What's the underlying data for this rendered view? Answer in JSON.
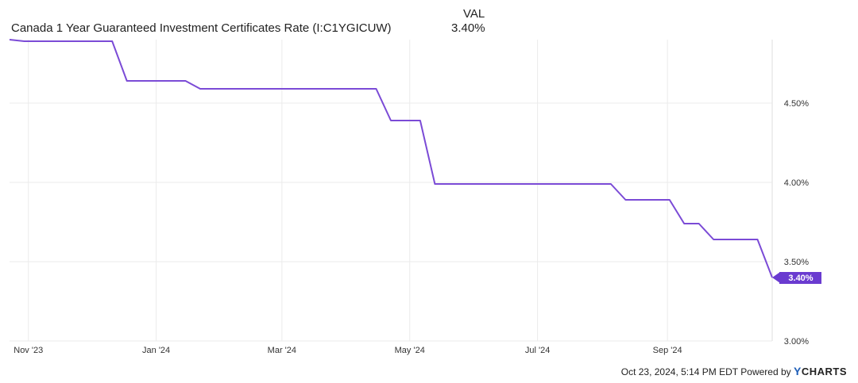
{
  "legend": {
    "column_header": "VAL",
    "series_name": "Canada 1 Year Guaranteed Investment Certificates Rate (I:C1YGICUW)",
    "series_value": "3.40%"
  },
  "footer": {
    "timestamp": "Oct 23, 2024, 5:14 PM EDT",
    "powered_by": "Powered by",
    "brand_y": "Y",
    "brand_rest": "CHARTS"
  },
  "colors": {
    "line": "#7b4bd6",
    "label_bg": "#6a3bd0",
    "grid": "#ebebeb",
    "axis_text": "#333333"
  },
  "chart_data": {
    "type": "line",
    "title": "",
    "xlabel": "",
    "ylabel": "",
    "x_ticks": [
      "Nov '23",
      "Jan '24",
      "Mar '24",
      "May '24",
      "Jul '24",
      "Sep '24"
    ],
    "y_ticks": [
      "3.00%",
      "3.50%",
      "4.00%",
      "4.50%"
    ],
    "ylim": [
      3.0,
      4.9
    ],
    "y_axis_side": "right",
    "grid": true,
    "last_value_label": "3.40%",
    "series": [
      {
        "name": "Canada 1 Year Guaranteed Investment Certificates Rate (I:C1YGICUW)",
        "points": [
          {
            "x": "2023-10-23",
            "y": 4.9
          },
          {
            "x": "2023-10-30",
            "y": 4.89
          },
          {
            "x": "2023-12-11",
            "y": 4.89
          },
          {
            "x": "2023-12-18",
            "y": 4.64
          },
          {
            "x": "2024-01-15",
            "y": 4.64
          },
          {
            "x": "2024-01-22",
            "y": 4.59
          },
          {
            "x": "2024-04-15",
            "y": 4.59
          },
          {
            "x": "2024-04-22",
            "y": 4.39
          },
          {
            "x": "2024-05-06",
            "y": 4.39
          },
          {
            "x": "2024-05-13",
            "y": 3.99
          },
          {
            "x": "2024-08-05",
            "y": 3.99
          },
          {
            "x": "2024-08-12",
            "y": 3.89
          },
          {
            "x": "2024-09-02",
            "y": 3.89
          },
          {
            "x": "2024-09-09",
            "y": 3.74
          },
          {
            "x": "2024-09-16",
            "y": 3.74
          },
          {
            "x": "2024-09-23",
            "y": 3.64
          },
          {
            "x": "2024-10-14",
            "y": 3.64
          },
          {
            "x": "2024-10-21",
            "y": 3.4
          }
        ]
      }
    ]
  }
}
